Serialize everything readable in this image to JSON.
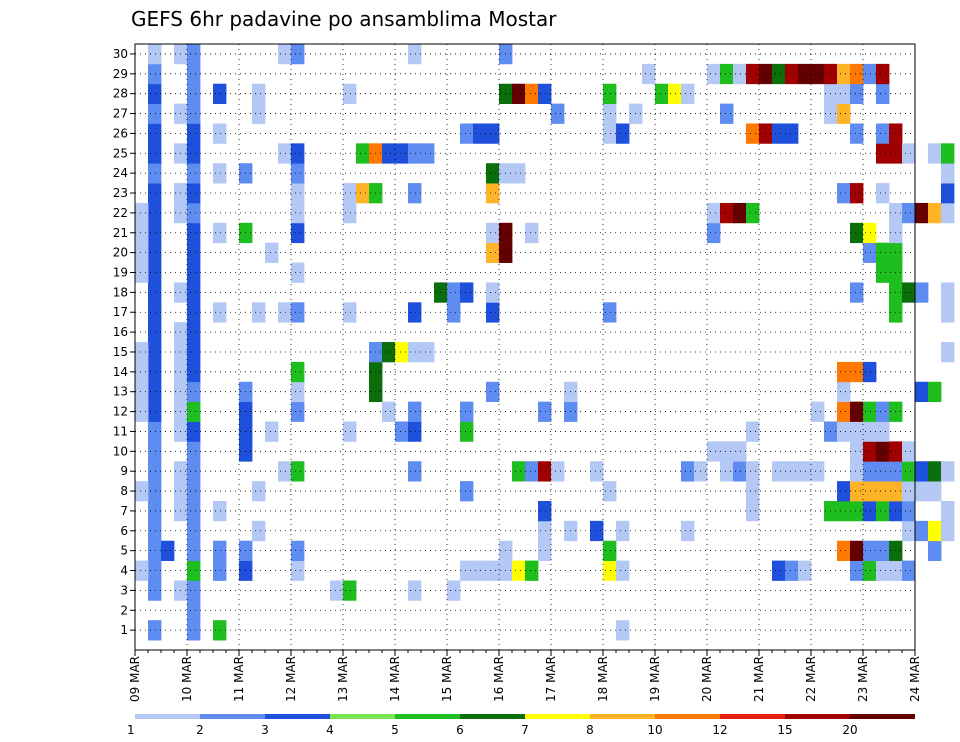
{
  "chart_data": {
    "type": "heatmap",
    "title": "GEFS 6hr padavine po ansamblima Mostar",
    "xlabel": "",
    "ylabel": "",
    "grid": true,
    "y_ticks": [
      "1",
      "2",
      "3",
      "4",
      "5",
      "6",
      "7",
      "8",
      "9",
      "10",
      "11",
      "12",
      "13",
      "14",
      "15",
      "16",
      "17",
      "18",
      "19",
      "20",
      "21",
      "22",
      "23",
      "24",
      "25",
      "26",
      "27",
      "28",
      "29",
      "30"
    ],
    "ylim": [
      1,
      30
    ],
    "x_ticks": [
      "09 MAR",
      "10 MAR",
      "11 MAR",
      "12 MAR",
      "13 MAR",
      "14 MAR",
      "15 MAR",
      "16 MAR",
      "17 MAR",
      "18 MAR",
      "19 MAR",
      "20 MAR",
      "21 MAR",
      "22 MAR",
      "23 MAR",
      "24 MAR"
    ],
    "x_steps": 60,
    "levels": [
      "1",
      "2",
      "3",
      "4",
      "5",
      "6",
      "7",
      "8",
      "10",
      "12",
      "15",
      "20"
    ],
    "level_colors": [
      "#b4c8f5",
      "#5f8cf0",
      "#1e50dc",
      "#78e650",
      "#1ebe1e",
      "#0a6e0a",
      "#ffff00",
      "#ffb428",
      "#ff7800",
      "#e61e0a",
      "#a00000",
      "#640000"
    ],
    "cells": [
      [
        1,
        1,
        2
      ],
      [
        1,
        3,
        2
      ],
      [
        1,
        4,
        2
      ],
      [
        1,
        5,
        2
      ],
      [
        1,
        6,
        2
      ],
      [
        1,
        7,
        2
      ],
      [
        1,
        8,
        2
      ],
      [
        1,
        9,
        2
      ],
      [
        1,
        10,
        2
      ],
      [
        1,
        11,
        2
      ],
      [
        1,
        12,
        3
      ],
      [
        1,
        13,
        3
      ],
      [
        1,
        14,
        3
      ],
      [
        1,
        15,
        3
      ],
      [
        1,
        16,
        3
      ],
      [
        1,
        17,
        3
      ],
      [
        1,
        18,
        3
      ],
      [
        1,
        19,
        3
      ],
      [
        1,
        20,
        3
      ],
      [
        1,
        21,
        3
      ],
      [
        1,
        22,
        3
      ],
      [
        1,
        23,
        3
      ],
      [
        1,
        24,
        2
      ],
      [
        1,
        25,
        3
      ],
      [
        1,
        26,
        3
      ],
      [
        1,
        27,
        2
      ],
      [
        1,
        28,
        3
      ],
      [
        1,
        29,
        2
      ],
      [
        1,
        30,
        1
      ],
      [
        0,
        4,
        1
      ],
      [
        0,
        8,
        1
      ],
      [
        0,
        12,
        1
      ],
      [
        0,
        13,
        1
      ],
      [
        0,
        14,
        1
      ],
      [
        0,
        15,
        1
      ],
      [
        0,
        19,
        1
      ],
      [
        0,
        20,
        1
      ],
      [
        0,
        21,
        1
      ],
      [
        0,
        22,
        1
      ],
      [
        2,
        5,
        3
      ],
      [
        3,
        3,
        1
      ],
      [
        3,
        7,
        1
      ],
      [
        3,
        8,
        1
      ],
      [
        3,
        9,
        1
      ],
      [
        3,
        11,
        1
      ],
      [
        3,
        12,
        1
      ],
      [
        3,
        13,
        1
      ],
      [
        3,
        14,
        1
      ],
      [
        3,
        15,
        1
      ],
      [
        3,
        16,
        1
      ],
      [
        3,
        18,
        1
      ],
      [
        3,
        22,
        1
      ],
      [
        3,
        23,
        1
      ],
      [
        3,
        25,
        1
      ],
      [
        3,
        27,
        1
      ],
      [
        3,
        30,
        1
      ],
      [
        4,
        1,
        2
      ],
      [
        4,
        2,
        2
      ],
      [
        4,
        3,
        2
      ],
      [
        4,
        4,
        5
      ],
      [
        4,
        5,
        2
      ],
      [
        4,
        6,
        2
      ],
      [
        4,
        7,
        2
      ],
      [
        4,
        8,
        2
      ],
      [
        4,
        9,
        2
      ],
      [
        4,
        10,
        2
      ],
      [
        4,
        11,
        3
      ],
      [
        4,
        12,
        5
      ],
      [
        4,
        13,
        2
      ],
      [
        4,
        14,
        3
      ],
      [
        4,
        15,
        3
      ],
      [
        4,
        16,
        3
      ],
      [
        4,
        17,
        3
      ],
      [
        4,
        18,
        3
      ],
      [
        4,
        19,
        3
      ],
      [
        4,
        20,
        3
      ],
      [
        4,
        21,
        3
      ],
      [
        4,
        22,
        2
      ],
      [
        4,
        23,
        3
      ],
      [
        4,
        24,
        2
      ],
      [
        4,
        25,
        3
      ],
      [
        4,
        26,
        3
      ],
      [
        4,
        27,
        2
      ],
      [
        4,
        28,
        2
      ],
      [
        4,
        29,
        2
      ],
      [
        4,
        30,
        2
      ],
      [
        6,
        1,
        5
      ],
      [
        6,
        4,
        2
      ],
      [
        6,
        5,
        2
      ],
      [
        6,
        7,
        1
      ],
      [
        6,
        17,
        1
      ],
      [
        6,
        21,
        1
      ],
      [
        6,
        24,
        1
      ],
      [
        6,
        26,
        1
      ],
      [
        6,
        28,
        3
      ],
      [
        8,
        4,
        3
      ],
      [
        8,
        5,
        2
      ],
      [
        8,
        10,
        3
      ],
      [
        8,
        11,
        3
      ],
      [
        8,
        12,
        3
      ],
      [
        8,
        13,
        2
      ],
      [
        8,
        21,
        5
      ],
      [
        8,
        24,
        2
      ],
      [
        9,
        6,
        1
      ],
      [
        9,
        8,
        1
      ],
      [
        9,
        17,
        1
      ],
      [
        9,
        27,
        1
      ],
      [
        9,
        28,
        1
      ],
      [
        10,
        11,
        1
      ],
      [
        10,
        20,
        1
      ],
      [
        11,
        9,
        1
      ],
      [
        11,
        17,
        1
      ],
      [
        11,
        25,
        1
      ],
      [
        11,
        30,
        1
      ],
      [
        12,
        4,
        1
      ],
      [
        12,
        5,
        2
      ],
      [
        12,
        9,
        5
      ],
      [
        12,
        12,
        2
      ],
      [
        12,
        13,
        1
      ],
      [
        12,
        14,
        5
      ],
      [
        12,
        17,
        2
      ],
      [
        12,
        19,
        1
      ],
      [
        12,
        21,
        3
      ],
      [
        12,
        22,
        1
      ],
      [
        12,
        23,
        1
      ],
      [
        12,
        24,
        2
      ],
      [
        12,
        25,
        3
      ],
      [
        12,
        30,
        2
      ],
      [
        15,
        3,
        1
      ],
      [
        16,
        3,
        5
      ],
      [
        16,
        11,
        1
      ],
      [
        16,
        17,
        1
      ],
      [
        16,
        22,
        1
      ],
      [
        16,
        23,
        1
      ],
      [
        16,
        28,
        1
      ],
      [
        17,
        23,
        8
      ],
      [
        17,
        25,
        5
      ],
      [
        18,
        13,
        6
      ],
      [
        18,
        14,
        6
      ],
      [
        18,
        15,
        2
      ],
      [
        18,
        23,
        5
      ],
      [
        18,
        25,
        9
      ],
      [
        19,
        12,
        1
      ],
      [
        19,
        15,
        6
      ],
      [
        19,
        25,
        3
      ],
      [
        20,
        11,
        2
      ],
      [
        20,
        15,
        7
      ],
      [
        20,
        25,
        3
      ],
      [
        21,
        3,
        1
      ],
      [
        21,
        9,
        2
      ],
      [
        21,
        11,
        3
      ],
      [
        21,
        12,
        2
      ],
      [
        21,
        15,
        1
      ],
      [
        21,
        17,
        3
      ],
      [
        21,
        23,
        2
      ],
      [
        21,
        25,
        2
      ],
      [
        21,
        30,
        1
      ],
      [
        22,
        15,
        1
      ],
      [
        22,
        25,
        2
      ],
      [
        23,
        18,
        6
      ],
      [
        24,
        3,
        1
      ],
      [
        24,
        17,
        2
      ],
      [
        24,
        18,
        2
      ],
      [
        25,
        4,
        1
      ],
      [
        25,
        8,
        2
      ],
      [
        25,
        11,
        5
      ],
      [
        25,
        12,
        2
      ],
      [
        25,
        18,
        3
      ],
      [
        25,
        26,
        2
      ],
      [
        26,
        4,
        1
      ],
      [
        26,
        26,
        3
      ],
      [
        27,
        4,
        1
      ],
      [
        27,
        13,
        2
      ],
      [
        27,
        17,
        3
      ],
      [
        27,
        18,
        1
      ],
      [
        27,
        20,
        8
      ],
      [
        27,
        21,
        1
      ],
      [
        27,
        23,
        8
      ],
      [
        27,
        24,
        6
      ],
      [
        27,
        26,
        3
      ],
      [
        28,
        4,
        1
      ],
      [
        28,
        5,
        1
      ],
      [
        28,
        20,
        12
      ],
      [
        28,
        21,
        12
      ],
      [
        28,
        24,
        1
      ],
      [
        28,
        28,
        6
      ],
      [
        28,
        30,
        2
      ],
      [
        29,
        4,
        7
      ],
      [
        29,
        9,
        5
      ],
      [
        29,
        24,
        1
      ],
      [
        29,
        28,
        12
      ],
      [
        30,
        4,
        5
      ],
      [
        30,
        9,
        2
      ],
      [
        30,
        21,
        1
      ],
      [
        30,
        28,
        9
      ],
      [
        31,
        5,
        1
      ],
      [
        31,
        6,
        1
      ],
      [
        31,
        7,
        3
      ],
      [
        31,
        9,
        11
      ],
      [
        31,
        12,
        2
      ],
      [
        31,
        28,
        3
      ],
      [
        32,
        9,
        1
      ],
      [
        32,
        27,
        2
      ],
      [
        33,
        6,
        1
      ],
      [
        33,
        12,
        2
      ],
      [
        33,
        13,
        1
      ],
      [
        35,
        6,
        3
      ],
      [
        35,
        9,
        1
      ],
      [
        36,
        4,
        7
      ],
      [
        36,
        5,
        5
      ],
      [
        36,
        8,
        1
      ],
      [
        36,
        17,
        2
      ],
      [
        36,
        26,
        1
      ],
      [
        36,
        27,
        1
      ],
      [
        36,
        28,
        5
      ],
      [
        37,
        1,
        1
      ],
      [
        37,
        4,
        1
      ],
      [
        37,
        6,
        1
      ],
      [
        37,
        26,
        3
      ],
      [
        38,
        27,
        1
      ],
      [
        39,
        29,
        1
      ],
      [
        40,
        28,
        5
      ],
      [
        41,
        28,
        7
      ],
      [
        42,
        6,
        1
      ],
      [
        42,
        9,
        2
      ],
      [
        42,
        28,
        1
      ],
      [
        43,
        9,
        1
      ],
      [
        44,
        10,
        1
      ],
      [
        44,
        21,
        2
      ],
      [
        44,
        22,
        1
      ],
      [
        44,
        29,
        1
      ],
      [
        45,
        9,
        1
      ],
      [
        45,
        10,
        1
      ],
      [
        45,
        22,
        11
      ],
      [
        45,
        27,
        2
      ],
      [
        45,
        29,
        5
      ],
      [
        46,
        9,
        2
      ],
      [
        46,
        10,
        1
      ],
      [
        46,
        22,
        12
      ],
      [
        46,
        29,
        1
      ],
      [
        47,
        7,
        1
      ],
      [
        47,
        8,
        1
      ],
      [
        47,
        9,
        1
      ],
      [
        47,
        11,
        1
      ],
      [
        47,
        22,
        5
      ],
      [
        47,
        26,
        9
      ],
      [
        47,
        29,
        11
      ],
      [
        48,
        26,
        11
      ],
      [
        48,
        29,
        12
      ],
      [
        49,
        4,
        3
      ],
      [
        49,
        9,
        1
      ],
      [
        49,
        26,
        3
      ],
      [
        49,
        29,
        6
      ],
      [
        50,
        4,
        2
      ],
      [
        50,
        9,
        1
      ],
      [
        50,
        26,
        3
      ],
      [
        50,
        29,
        11
      ],
      [
        51,
        4,
        1
      ],
      [
        51,
        9,
        1
      ],
      [
        51,
        29,
        12
      ],
      [
        52,
        9,
        1
      ],
      [
        52,
        12,
        1
      ],
      [
        52,
        29,
        12
      ],
      [
        53,
        7,
        5
      ],
      [
        53,
        11,
        2
      ],
      [
        53,
        27,
        1
      ],
      [
        53,
        28,
        1
      ],
      [
        53,
        29,
        11
      ],
      [
        54,
        5,
        9
      ],
      [
        54,
        7,
        5
      ],
      [
        54,
        8,
        3
      ],
      [
        54,
        11,
        1
      ],
      [
        54,
        12,
        9
      ],
      [
        54,
        13,
        1
      ],
      [
        54,
        14,
        9
      ],
      [
        54,
        23,
        2
      ],
      [
        54,
        27,
        8
      ],
      [
        54,
        28,
        1
      ],
      [
        54,
        29,
        8
      ],
      [
        55,
        4,
        2
      ],
      [
        55,
        5,
        12
      ],
      [
        55,
        7,
        5
      ],
      [
        55,
        8,
        8
      ],
      [
        55,
        9,
        1
      ],
      [
        55,
        10,
        1
      ],
      [
        55,
        11,
        1
      ],
      [
        55,
        12,
        12
      ],
      [
        55,
        14,
        9
      ],
      [
        55,
        18,
        2
      ],
      [
        55,
        21,
        6
      ],
      [
        55,
        23,
        11
      ],
      [
        55,
        26,
        2
      ],
      [
        55,
        28,
        2
      ],
      [
        55,
        29,
        9
      ],
      [
        56,
        4,
        5
      ],
      [
        56,
        5,
        2
      ],
      [
        56,
        7,
        3
      ],
      [
        56,
        8,
        8
      ],
      [
        56,
        9,
        2
      ],
      [
        56,
        10,
        11
      ],
      [
        56,
        11,
        1
      ],
      [
        56,
        12,
        5
      ],
      [
        56,
        14,
        3
      ],
      [
        56,
        20,
        2
      ],
      [
        56,
        21,
        7
      ],
      [
        56,
        29,
        2
      ],
      [
        57,
        4,
        1
      ],
      [
        57,
        5,
        2
      ],
      [
        57,
        7,
        5
      ],
      [
        57,
        8,
        8
      ],
      [
        57,
        9,
        2
      ],
      [
        57,
        10,
        12
      ],
      [
        57,
        11,
        1
      ],
      [
        57,
        12,
        2
      ],
      [
        57,
        19,
        5
      ],
      [
        57,
        20,
        5
      ],
      [
        57,
        23,
        1
      ],
      [
        57,
        25,
        11
      ],
      [
        57,
        26,
        2
      ],
      [
        57,
        28,
        2
      ],
      [
        57,
        29,
        11
      ],
      [
        58,
        4,
        1
      ],
      [
        58,
        5,
        6
      ],
      [
        58,
        7,
        3
      ],
      [
        58,
        8,
        8
      ],
      [
        58,
        9,
        2
      ],
      [
        58,
        10,
        11
      ],
      [
        58,
        12,
        5
      ],
      [
        58,
        17,
        5
      ],
      [
        58,
        18,
        5
      ],
      [
        58,
        19,
        5
      ],
      [
        58,
        20,
        5
      ],
      [
        58,
        21,
        1
      ],
      [
        58,
        22,
        1
      ],
      [
        58,
        25,
        11
      ],
      [
        58,
        26,
        11
      ],
      [
        59,
        4,
        2
      ],
      [
        59,
        6,
        1
      ],
      [
        59,
        7,
        2
      ],
      [
        59,
        8,
        1
      ],
      [
        59,
        9,
        5
      ],
      [
        59,
        10,
        1
      ],
      [
        59,
        18,
        6
      ],
      [
        59,
        22,
        2
      ],
      [
        59,
        25,
        1
      ],
      [
        60,
        6,
        2
      ],
      [
        60,
        8,
        1
      ],
      [
        60,
        9,
        3
      ],
      [
        60,
        13,
        3
      ],
      [
        60,
        18,
        2
      ],
      [
        60,
        22,
        12
      ],
      [
        61,
        5,
        2
      ],
      [
        61,
        6,
        7
      ],
      [
        61,
        8,
        1
      ],
      [
        61,
        9,
        6
      ],
      [
        61,
        13,
        5
      ],
      [
        61,
        22,
        8
      ],
      [
        61,
        25,
        1
      ],
      [
        62,
        6,
        1
      ],
      [
        62,
        7,
        1
      ],
      [
        62,
        9,
        1
      ],
      [
        62,
        15,
        1
      ],
      [
        62,
        17,
        1
      ],
      [
        62,
        18,
        1
      ],
      [
        62,
        22,
        1
      ],
      [
        62,
        23,
        3
      ],
      [
        62,
        24,
        1
      ],
      [
        62,
        25,
        5
      ]
    ]
  }
}
